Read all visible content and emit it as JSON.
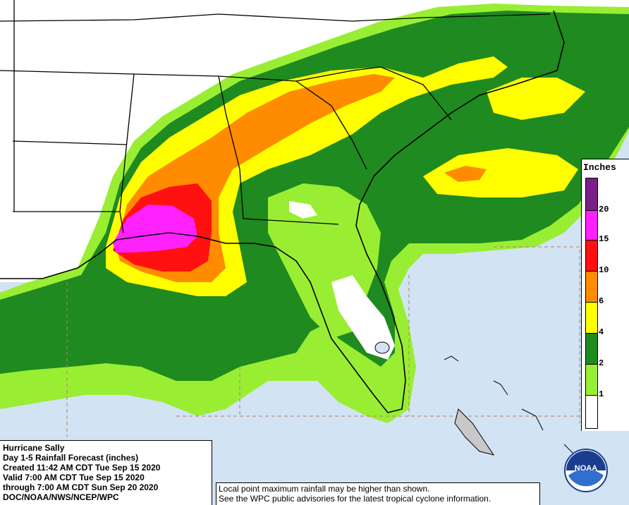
{
  "info": {
    "lines": [
      "Hurricane Sally",
      "Day 1-5 Rainfall Forecast (inches)",
      "Created 11:42 AM CDT Tue Sep 15 2020",
      "Valid 7:00 AM CDT Tue Sep 15 2020",
      "through 7:00 AM CDT Sun Sep 20 2020",
      "DOC/NOAA/NWS/NCEP/WPC"
    ]
  },
  "note": {
    "line1": "Local point maximum rainfall may be higher than shown.",
    "line2": "See the WPC public advisories for the latest tropical cyclone information."
  },
  "legend": {
    "title": "Inches",
    "thresholds": [
      "20",
      "15",
      "10",
      "6",
      "4",
      "2",
      "1"
    ],
    "colors": [
      "#7a1f88",
      "#ff22ff",
      "#ff1111",
      "#ff8c00",
      "#ffff00",
      "#1f8a1f",
      "#99ee33",
      "#ffffff"
    ]
  },
  "logo": {
    "text": "NOAA"
  },
  "colors": {
    "ocean": "#d2e3f3",
    "land_dry": "#ffffff",
    "light_green": "#99ee33",
    "dark_green": "#1f8a1f",
    "yellow": "#ffff00",
    "orange": "#ff8c00",
    "red": "#ff1111",
    "magenta": "#ff22ff",
    "purple": "#7a1f88"
  }
}
